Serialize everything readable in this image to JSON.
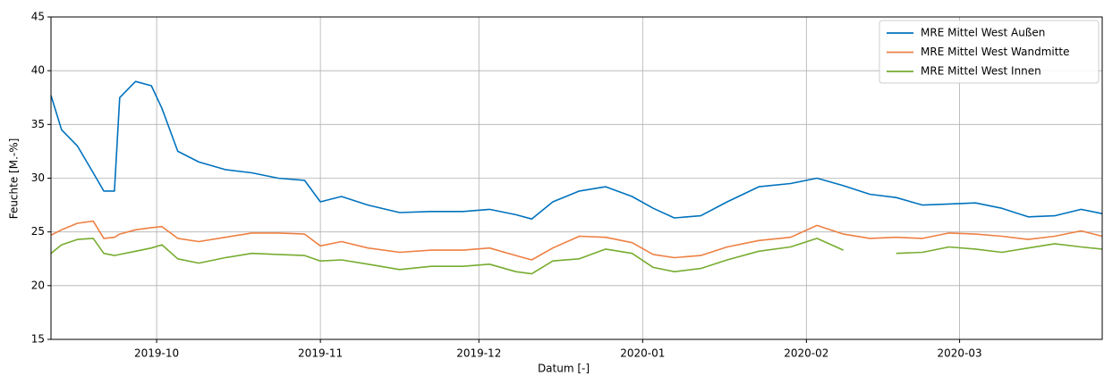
{
  "chart_data": {
    "type": "line",
    "xlabel": "Datum [-]",
    "ylabel": "Feuchte [M.-%]",
    "x": [
      "2019-09-11",
      "2019-09-13",
      "2019-09-16",
      "2019-09-19",
      "2019-09-21",
      "2019-09-23",
      "2019-09-24",
      "2019-09-27",
      "2019-09-30",
      "2019-10-02",
      "2019-10-05",
      "2019-10-09",
      "2019-10-14",
      "2019-10-19",
      "2019-10-24",
      "2019-10-29",
      "2019-11-01",
      "2019-11-05",
      "2019-11-10",
      "2019-11-16",
      "2019-11-22",
      "2019-11-28",
      "2019-12-03",
      "2019-12-08",
      "2019-12-11",
      "2019-12-15",
      "2019-12-20",
      "2019-12-25",
      "2019-12-30",
      "2020-01-03",
      "2020-01-07",
      "2020-01-12",
      "2020-01-17",
      "2020-01-23",
      "2020-01-29",
      "2020-02-03",
      "2020-02-08",
      "2020-02-13",
      "2020-02-18",
      "2020-02-23",
      "2020-02-28",
      "2020-03-04",
      "2020-03-09",
      "2020-03-14",
      "2020-03-19",
      "2020-03-24",
      "2020-03-28"
    ],
    "series": [
      {
        "name": "MRE Mittel West Außen",
        "color": "#0072bd",
        "values": [
          37.7,
          34.5,
          33,
          30.5,
          28.8,
          28.8,
          37.5,
          39,
          38.6,
          36.5,
          32.5,
          31.5,
          30.8,
          30.5,
          30,
          29.8,
          27.8,
          28.3,
          27.5,
          26.8,
          26.9,
          26.9,
          27.1,
          26.6,
          26.2,
          27.8,
          28.8,
          29.2,
          28.3,
          27.2,
          26.3,
          26.5,
          27.8,
          29.2,
          29.5,
          30,
          29.3,
          28.5,
          28.2,
          27.5,
          27.6,
          27.7,
          27.2,
          26.4,
          26.5,
          27.1,
          26.7
        ]
      },
      {
        "name": "MRE Mittel West Wandmitte",
        "color": "#ee8043",
        "values": [
          24.7,
          25.2,
          25.8,
          26.0,
          24.4,
          24.5,
          24.8,
          25.2,
          25.4,
          25.5,
          24.4,
          24.1,
          24.5,
          24.9,
          24.9,
          24.8,
          23.7,
          24.1,
          23.5,
          23.1,
          23.3,
          23.3,
          23.5,
          22.8,
          22.4,
          23.5,
          24.6,
          24.5,
          24.0,
          22.9,
          22.6,
          22.8,
          23.6,
          24.2,
          24.5,
          25.6,
          24.8,
          24.4,
          24.5,
          24.4,
          24.9,
          24.8,
          24.6,
          24.3,
          24.6,
          25.1,
          24.6
        ]
      },
      {
        "name": "MRE Mittel West Innen",
        "color": "#77ac30",
        "values": [
          23.0,
          23.8,
          24.3,
          24.4,
          23.0,
          22.8,
          22.9,
          23.2,
          23.5,
          23.8,
          22.5,
          22.1,
          22.6,
          23.0,
          22.9,
          22.8,
          22.3,
          22.4,
          22.0,
          21.5,
          21.8,
          21.8,
          22.0,
          21.3,
          21.1,
          22.3,
          22.5,
          23.4,
          23.0,
          21.7,
          21.3,
          21.6,
          22.4,
          23.2,
          23.6,
          24.4,
          23.3,
          null,
          23.0,
          23.1,
          23.6,
          23.4,
          23.1,
          23.5,
          23.9,
          23.6,
          23.4
        ]
      }
    ],
    "xlim": [
      "2019-09-11",
      "2020-03-28"
    ],
    "xticks": [
      {
        "value": "2019-10-01",
        "label": "2019-10"
      },
      {
        "value": "2019-11-01",
        "label": "2019-11"
      },
      {
        "value": "2019-12-01",
        "label": "2019-12"
      },
      {
        "value": "2020-01-01",
        "label": "2020-01"
      },
      {
        "value": "2020-02-01",
        "label": "2020-02"
      },
      {
        "value": "2020-03-01",
        "label": "2020-03"
      }
    ],
    "ylim": [
      15,
      45
    ],
    "yticks": [
      15,
      20,
      25,
      30,
      35,
      40,
      45
    ],
    "grid": true,
    "legend": "upper right"
  }
}
